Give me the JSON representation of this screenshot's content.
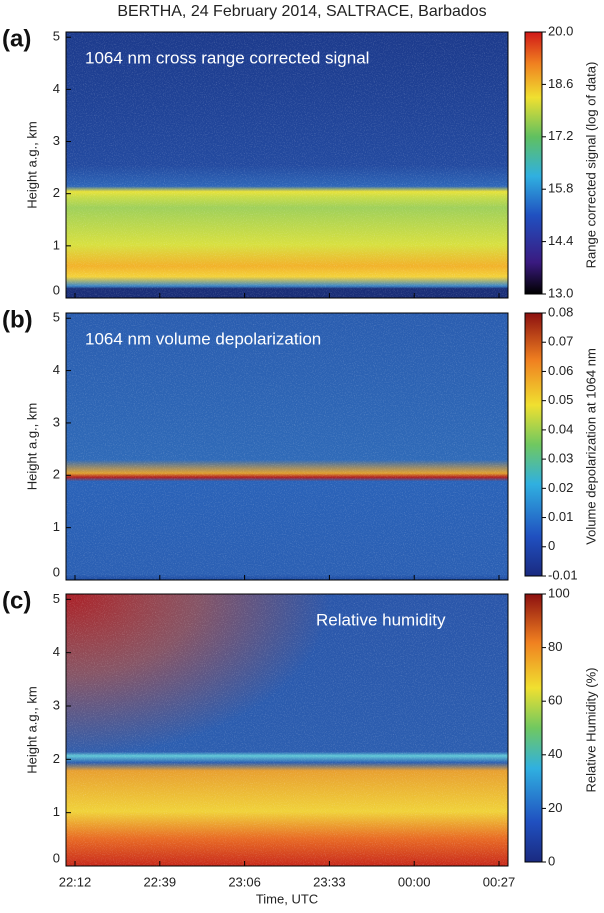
{
  "title": "BERTHA, 24 February 2014, SALTRACE, Barbados",
  "x_axis": {
    "label": "Time, UTC",
    "ticks": [
      "22:12",
      "22:39",
      "23:06",
      "23:33",
      "00:00",
      "00:27"
    ]
  },
  "chart_data": [
    {
      "type": "heatmap",
      "panel_label": "(a)",
      "annotation": "1064 nm cross range corrected signal",
      "ylabel": "Height a.g., km",
      "ylim": [
        0,
        5.1
      ],
      "yticks": [
        0,
        1,
        2,
        3,
        4,
        5
      ],
      "colorbar": {
        "label": "Range corrected signal (log of data)",
        "lim": [
          13,
          20
        ],
        "ticks": [
          {
            "value": 13,
            "label": "13.0"
          },
          14.4,
          15.8,
          17.2,
          18.6,
          {
            "value": 20,
            "label": "20.0"
          }
        ]
      }
    },
    {
      "type": "heatmap",
      "panel_label": "(b)",
      "annotation": "1064 nm volume depolarization",
      "ylabel": "Height a.g., km",
      "ylim": [
        0,
        5.1
      ],
      "yticks": [
        0,
        1,
        2,
        3,
        4,
        5
      ],
      "colorbar": {
        "label": "Volume depolarization at 1064 nm",
        "lim": [
          -0.01,
          0.08
        ],
        "ticks": [
          -0.01,
          0,
          0.01,
          0.02,
          0.03,
          0.04,
          0.05,
          0.06,
          0.07,
          0.08
        ]
      }
    },
    {
      "type": "heatmap",
      "panel_label": "(c)",
      "annotation": "Relative humidity",
      "ylabel": "Height a.g., km",
      "ylim": [
        0,
        5.1
      ],
      "yticks": [
        0,
        1,
        2,
        3,
        4,
        5
      ],
      "colorbar": {
        "label": "Relative Humidity (%)",
        "lim": [
          0,
          100
        ],
        "ticks": [
          0,
          20,
          40,
          60,
          80,
          100
        ]
      }
    }
  ]
}
